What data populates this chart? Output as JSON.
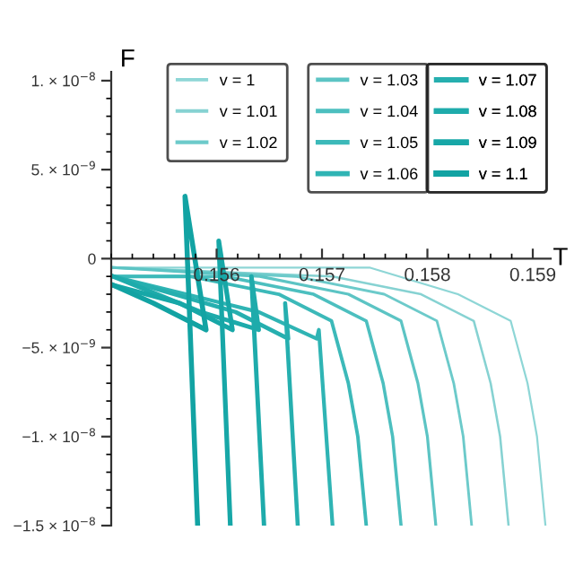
{
  "chart_data": {
    "type": "line",
    "xlabel": "T",
    "ylabel": "F",
    "xlim": [
      0.155,
      0.15917
    ],
    "xticks": [
      0.156,
      0.157,
      0.158,
      0.159
    ],
    "ylim": [
      -1.5e-08,
      1.05e-08
    ],
    "yticks": [
      {
        "value": -1.5e-08,
        "label": "−1.5 × 10$^{−8}$"
      },
      {
        "value": -1e-08,
        "label": "−1. × 10$^{−8}$"
      },
      {
        "value": -5e-09,
        "label": "−5. × 10$^{−9}$"
      },
      0,
      {
        "value": 5e-09,
        "label": "5. × 10$^{−9}$"
      },
      {
        "value": 1e-08,
        "label": "1. × 10$^{−8}$"
      }
    ],
    "grid": false,
    "legend": "top right",
    "marker": "none",
    "line_style": "solid",
    "series": [
      {
        "name": "v = 1",
        "color": "#8ed6d6",
        "x": [
          0.15502,
          0.15745,
          0.15829,
          0.15879,
          0.15895,
          0.15904,
          0.15912
        ],
        "values": [
          -5e-10,
          -5e-10,
          -2e-09,
          -3.5e-09,
          -7e-09,
          -1e-08,
          -1.5e-08
        ]
      },
      {
        "name": "v = 1.01",
        "color": "#86d2d2",
        "x": [
          0.15502,
          0.1571,
          0.15794,
          0.15844,
          0.1586,
          0.15869,
          0.15877
        ],
        "values": [
          -5e-10,
          -1e-09,
          -2e-09,
          -3.5e-09,
          -7e-09,
          -1e-08,
          -1.5e-08
        ]
      },
      {
        "name": "v = 1.02",
        "color": "#6ccaca",
        "x": [
          0.15502,
          0.15675,
          0.15759,
          0.15809,
          0.15825,
          0.15834,
          0.15842
        ],
        "values": [
          -5e-10,
          -1e-09,
          -2e-09,
          -3.5e-09,
          -7e-09,
          -1e-08,
          -1.5e-08
        ]
      },
      {
        "name": "v = 1.03",
        "color": "#5cc4c4",
        "x": [
          0.15502,
          0.15641,
          0.15725,
          0.15775,
          0.15791,
          0.158,
          0.15808
        ],
        "values": [
          -5e-10,
          -1e-09,
          -2e-09,
          -3.5e-09,
          -7e-09,
          -1e-08,
          -1.5e-08
        ]
      },
      {
        "name": "v = 1.04",
        "color": "#4cbfbf",
        "x": [
          0.15502,
          0.15608,
          0.15692,
          0.15742,
          0.15758,
          0.15767,
          0.15775
        ],
        "values": [
          -1e-09,
          -1e-09,
          -2e-09,
          -3.5e-09,
          -7e-09,
          -1e-08,
          -1.5e-08
        ]
      },
      {
        "name": "v = 1.05",
        "color": "#3cb9b9",
        "x": [
          0.15502,
          0.15575,
          0.15659,
          0.15709,
          0.15725,
          0.15734,
          0.15742
        ],
        "values": [
          -1e-09,
          -1e-09,
          -2e-09,
          -3.5e-09,
          -7e-09,
          -1e-08,
          -1.5e-08
        ]
      },
      {
        "name": "v = 1.06",
        "color": "#2fb4b4",
        "x": [
          0.15502,
          0.1564,
          0.15695,
          0.15697,
          0.1571
        ],
        "values": [
          -1e-09,
          -3e-09,
          -4.5e-09,
          -4e-09,
          -1.5e-08
        ]
      },
      {
        "name": "v = 1.07",
        "color": "#26afaf",
        "x": [
          0.15502,
          0.15618,
          0.15668,
          0.15665,
          0.15677
        ],
        "values": [
          -1e-09,
          -3e-09,
          -4.5e-09,
          -2.5e-09,
          -1.5e-08
        ]
      },
      {
        "name": "v = 1.08",
        "color": "#1eabab",
        "x": [
          0.15502,
          0.15585,
          0.1564,
          0.15633,
          0.15645
        ],
        "values": [
          -1e-09,
          -3e-09,
          -4e-09,
          -1e-09,
          -1.5e-08
        ]
      },
      {
        "name": "v = 1.09",
        "color": "#17a7a7",
        "x": [
          0.15502,
          0.15565,
          0.15615,
          0.15602,
          0.15613
        ],
        "values": [
          -1.5e-09,
          -2.5e-09,
          -4e-09,
          1e-09,
          -1.5e-08
        ]
      },
      {
        "name": "v = 1.1",
        "color": "#12a3a3",
        "x": [
          0.15502,
          0.1554,
          0.1559,
          0.1557,
          0.15582
        ],
        "values": [
          -1.5e-09,
          -2.5e-09,
          -4e-09,
          3.5e-09,
          -1.5e-08
        ]
      }
    ]
  }
}
